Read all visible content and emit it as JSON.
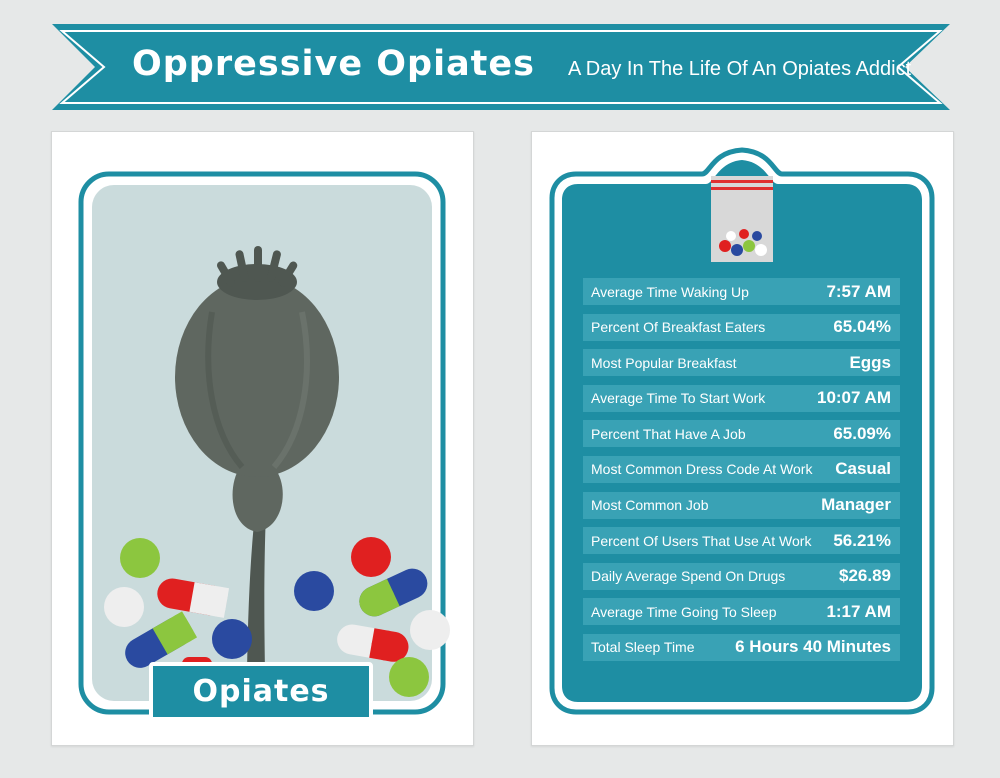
{
  "header": {
    "title": "Oppressive Opiates",
    "subtitle": "A Day In The Life Of An Opiates Addict"
  },
  "drug_card": {
    "label": "Opiates"
  },
  "stats": [
    {
      "label": "Average Time Waking Up",
      "value": "7:57 AM"
    },
    {
      "label": "Percent Of Breakfast Eaters",
      "value": "65.04%"
    },
    {
      "label": "Most Popular Breakfast",
      "value": "Eggs"
    },
    {
      "label": "Average Time To Start Work",
      "value": "10:07 AM"
    },
    {
      "label": "Percent That Have A Job",
      "value": "65.09%"
    },
    {
      "label": "Most Common Dress Code At Work",
      "value": "Casual"
    },
    {
      "label": "Most Common Job",
      "value": "Manager"
    },
    {
      "label": "Percent Of Users That Use At Work",
      "value": "56.21%"
    },
    {
      "label": "Daily Average Spend On Drugs",
      "value": "$26.89"
    },
    {
      "label": "Average Time Going To Sleep",
      "value": "1:17 AM"
    },
    {
      "label": "Total Sleep Time",
      "value": "6 Hours 40 Minutes"
    }
  ],
  "colors": {
    "teal": "#1e8ea3",
    "teal_light": "#39a2b5",
    "background": "#e6e8e8",
    "poppy": "#5f6760"
  }
}
